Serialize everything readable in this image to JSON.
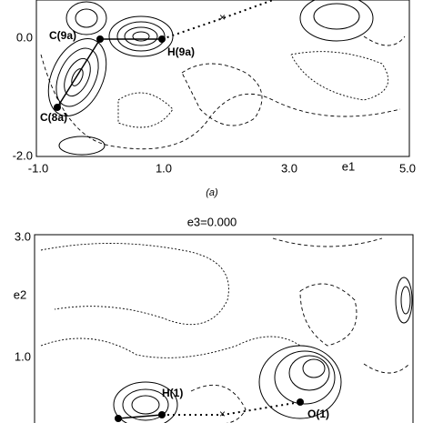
{
  "panel_a": {
    "y_ticks": [
      "0.0",
      "-2.0"
    ],
    "x_ticks": [
      "-1.0",
      "1.0",
      "3.0",
      "5.0"
    ],
    "x_axis_label": "e1",
    "atoms": [
      "C(9a)",
      "H(9a)",
      "C(8a)"
    ],
    "caption": "(a)"
  },
  "panel_b": {
    "title": "e3=0.000",
    "y_ticks": [
      "3.0",
      "1.0"
    ],
    "y_axis_label": "e2",
    "atoms": [
      "H(1)",
      "O(1)"
    ]
  }
}
